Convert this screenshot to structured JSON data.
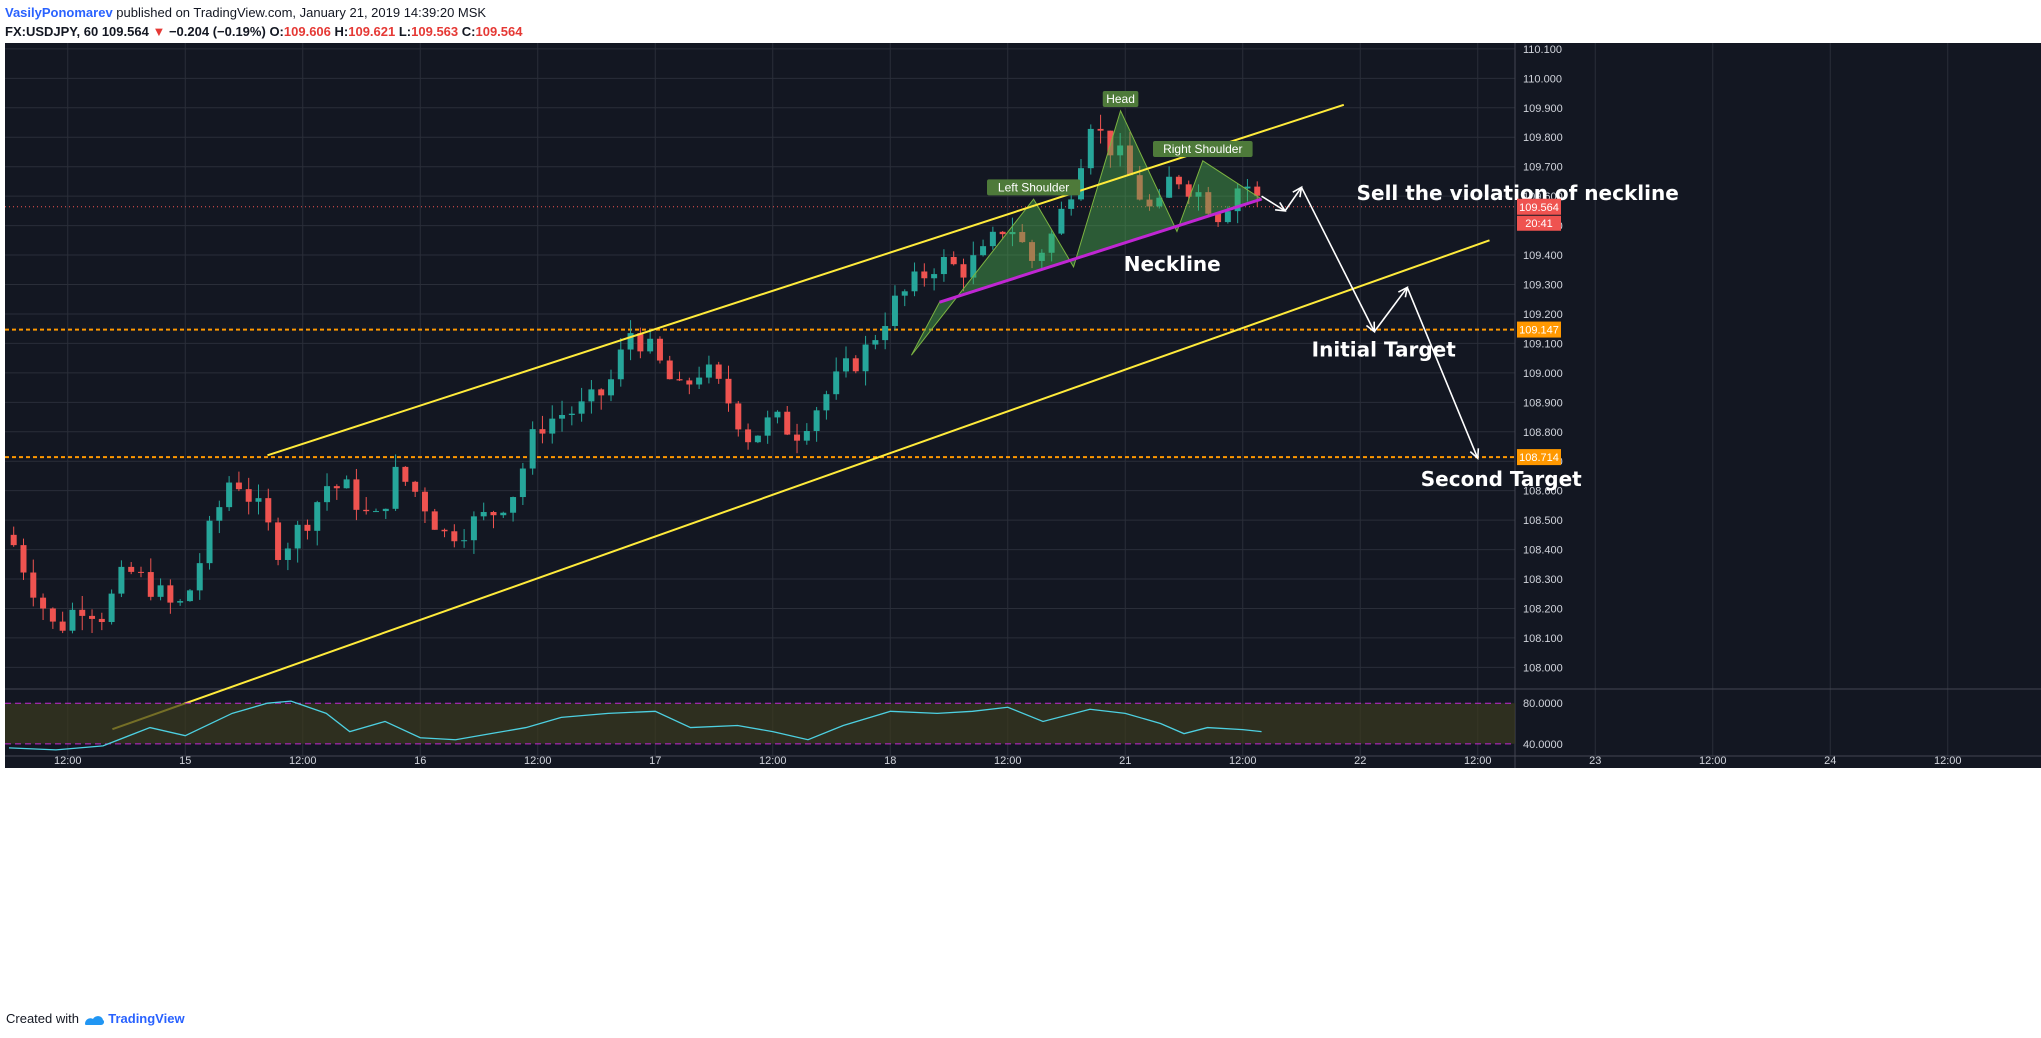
{
  "header": {
    "author": "VasilyPonomarev",
    "published_text": "published on TradingView.com, January 21, 2019 14:39:20 MSK",
    "symbol": "FX:USDJPY, 60",
    "last_price": "109.564",
    "change": "−0.204 (−0.19%)",
    "open_label": "O:",
    "open": "109.606",
    "high_label": "H:",
    "high": "109.621",
    "low_label": "L:",
    "low": "109.563",
    "close_label": "C:",
    "close": "109.564"
  },
  "footer": {
    "created_with": "Created with",
    "brand": "TradingView"
  },
  "colors": {
    "background": "#131722",
    "up": "#26a69a",
    "down": "#ef5350",
    "channel": "#ffeb3b",
    "neckline": "#c026d3",
    "pattern_fill": "#4caf50",
    "level": "#ff9800",
    "rsi": "#4dd0e1"
  },
  "chart_data": {
    "type": "candlestick",
    "symbol": "USDJPY",
    "interval": "60",
    "ylim": [
      107.93,
      110.12
    ],
    "y_ticks": [
      "110.100",
      "110.000",
      "109.900",
      "109.800",
      "109.700",
      "109.600",
      "109.500",
      "109.400",
      "109.300",
      "109.200",
      "109.100",
      "109.000",
      "108.900",
      "108.800",
      "108.700",
      "108.600",
      "108.500",
      "108.400",
      "108.300",
      "108.200",
      "108.100",
      "108.000"
    ],
    "x_ticks": [
      {
        "day": 0.25,
        "label": "12:00"
      },
      {
        "day": 0.75,
        "label": "15"
      },
      {
        "day": 1.25,
        "label": "12:00"
      },
      {
        "day": 1.75,
        "label": "16"
      },
      {
        "day": 2.25,
        "label": "12:00"
      },
      {
        "day": 2.75,
        "label": "17"
      },
      {
        "day": 3.25,
        "label": "12:00"
      },
      {
        "day": 3.75,
        "label": "18"
      },
      {
        "day": 4.25,
        "label": "12:00"
      },
      {
        "day": 4.75,
        "label": "21"
      },
      {
        "day": 5.25,
        "label": "12:00"
      },
      {
        "day": 5.75,
        "label": "22"
      },
      {
        "day": 6.25,
        "label": "12:00"
      },
      {
        "day": 6.75,
        "label": "23"
      },
      {
        "day": 7.25,
        "label": "12:00"
      },
      {
        "day": 7.75,
        "label": "24"
      },
      {
        "day": 8.25,
        "label": "12:00"
      }
    ],
    "price_badges": [
      {
        "value": 109.564,
        "label": "109.564",
        "color": "#ef5350"
      },
      {
        "value": 109.147,
        "label": "109.147",
        "color": "#ff9800"
      },
      {
        "value": 108.714,
        "label": "108.714",
        "color": "#ff9800"
      }
    ],
    "countdown": "20:41",
    "key_levels": [
      {
        "value": 109.147,
        "style": "dashed",
        "color": "#ff9800"
      },
      {
        "value": 108.714,
        "style": "dashed",
        "color": "#ff9800"
      },
      {
        "value": 109.564,
        "style": "dotted",
        "color": "#ef5350"
      }
    ],
    "close_path": [
      [
        0.0,
        108.45
      ],
      [
        0.1,
        108.28
      ],
      [
        0.2,
        108.12
      ],
      [
        0.3,
        108.22
      ],
      [
        0.4,
        108.18
      ],
      [
        0.5,
        108.33
      ],
      [
        0.6,
        108.28
      ],
      [
        0.7,
        108.2
      ],
      [
        0.75,
        108.22
      ],
      [
        0.85,
        108.45
      ],
      [
        0.95,
        108.66
      ],
      [
        1.05,
        108.55
      ],
      [
        1.15,
        108.4
      ],
      [
        1.25,
        108.48
      ],
      [
        1.35,
        108.62
      ],
      [
        1.45,
        108.6
      ],
      [
        1.55,
        108.48
      ],
      [
        1.65,
        108.66
      ],
      [
        1.75,
        108.58
      ],
      [
        1.85,
        108.45
      ],
      [
        1.95,
        108.48
      ],
      [
        2.05,
        108.52
      ],
      [
        2.15,
        108.6
      ],
      [
        2.25,
        108.82
      ],
      [
        2.35,
        108.86
      ],
      [
        2.45,
        108.88
      ],
      [
        2.55,
        108.95
      ],
      [
        2.65,
        109.15
      ],
      [
        2.75,
        109.05
      ],
      [
        2.85,
        108.93
      ],
      [
        2.95,
        109.02
      ],
      [
        3.05,
        108.92
      ],
      [
        3.15,
        108.78
      ],
      [
        3.25,
        108.84
      ],
      [
        3.35,
        108.8
      ],
      [
        3.45,
        108.9
      ],
      [
        3.55,
        109.0
      ],
      [
        3.65,
        109.08
      ],
      [
        3.75,
        109.22
      ],
      [
        3.85,
        109.3
      ],
      [
        3.95,
        109.38
      ],
      [
        4.05,
        109.35
      ],
      [
        4.15,
        109.4
      ],
      [
        4.25,
        109.52
      ],
      [
        4.35,
        109.38
      ],
      [
        4.45,
        109.48
      ],
      [
        4.55,
        109.7
      ],
      [
        4.6,
        109.87
      ],
      [
        4.65,
        109.8
      ],
      [
        4.72,
        109.74
      ],
      [
        4.8,
        109.62
      ],
      [
        4.88,
        109.52
      ],
      [
        4.95,
        109.68
      ],
      [
        5.05,
        109.62
      ],
      [
        5.15,
        109.54
      ],
      [
        5.2,
        109.6
      ],
      [
        5.25,
        109.66
      ],
      [
        5.33,
        109.564
      ]
    ],
    "channel_upper": [
      [
        1.1,
        108.72
      ],
      [
        5.68,
        109.91
      ]
    ],
    "channel_lower": [
      [
        0.44,
        107.79
      ],
      [
        6.3,
        109.45
      ]
    ],
    "neckline": [
      [
        3.96,
        109.24
      ],
      [
        5.33,
        109.59
      ]
    ],
    "pattern": {
      "polygon": [
        [
          3.84,
          109.06
        ],
        [
          4.36,
          109.59
        ],
        [
          4.53,
          109.36
        ],
        [
          4.73,
          109.89
        ],
        [
          4.97,
          109.48
        ],
        [
          5.08,
          109.72
        ],
        [
          5.33,
          109.59
        ],
        [
          3.96,
          109.24
        ]
      ]
    },
    "annotations": [
      {
        "text": "Head",
        "day": 4.73,
        "value": 109.93,
        "style": "label"
      },
      {
        "text": "Left Shoulder",
        "day": 4.36,
        "value": 109.63,
        "style": "label"
      },
      {
        "text": "Right Shoulder",
        "day": 5.08,
        "value": 109.76,
        "style": "label"
      },
      {
        "text": "Neckline",
        "day": 4.95,
        "value": 109.37,
        "style": "bold"
      },
      {
        "text": "Sell the violation of neckline",
        "day": 6.42,
        "value": 109.61,
        "style": "bold"
      },
      {
        "text": "Initial Target",
        "day": 5.85,
        "value": 109.08,
        "style": "bold"
      },
      {
        "text": "Second Target",
        "day": 6.35,
        "value": 108.64,
        "style": "bold"
      }
    ],
    "arrows_path": [
      [
        5.33,
        109.6
      ],
      [
        5.43,
        109.55
      ],
      [
        5.5,
        109.63
      ],
      [
        5.81,
        109.14
      ],
      [
        5.95,
        109.29
      ],
      [
        6.25,
        108.71
      ]
    ],
    "rsi": {
      "levels": [
        "80.0000",
        "40.0000"
      ],
      "level_values": [
        80,
        40
      ],
      "ylim": [
        28,
        92
      ],
      "path": [
        [
          0.0,
          36
        ],
        [
          0.2,
          34
        ],
        [
          0.4,
          38
        ],
        [
          0.6,
          56
        ],
        [
          0.75,
          48
        ],
        [
          0.95,
          70
        ],
        [
          1.1,
          80
        ],
        [
          1.2,
          82
        ],
        [
          1.35,
          70
        ],
        [
          1.45,
          52
        ],
        [
          1.6,
          62
        ],
        [
          1.75,
          46
        ],
        [
          1.9,
          44
        ],
        [
          2.05,
          50
        ],
        [
          2.2,
          56
        ],
        [
          2.35,
          66
        ],
        [
          2.55,
          70
        ],
        [
          2.75,
          72
        ],
        [
          2.9,
          56
        ],
        [
          3.1,
          58
        ],
        [
          3.25,
          52
        ],
        [
          3.4,
          44
        ],
        [
          3.55,
          58
        ],
        [
          3.75,
          72
        ],
        [
          3.95,
          70
        ],
        [
          4.1,
          72
        ],
        [
          4.25,
          76
        ],
        [
          4.4,
          62
        ],
        [
          4.6,
          74
        ],
        [
          4.75,
          70
        ],
        [
          4.9,
          60
        ],
        [
          5.0,
          50
        ],
        [
          5.1,
          56
        ],
        [
          5.25,
          54
        ],
        [
          5.33,
          52
        ]
      ]
    }
  }
}
